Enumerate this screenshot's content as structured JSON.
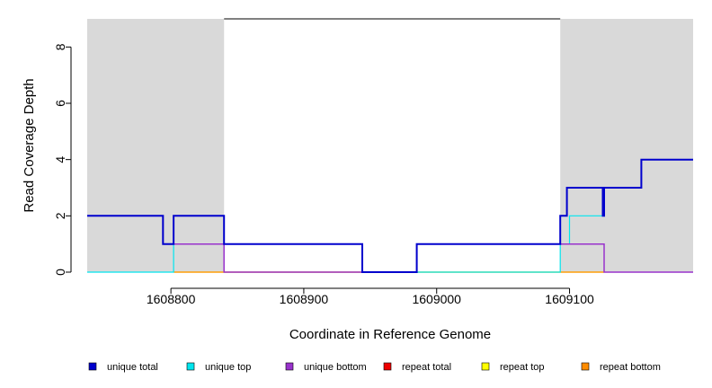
{
  "chart_data": {
    "type": "line",
    "step": true,
    "xlabel": "Coordinate in Reference Genome",
    "ylabel": "Read Coverage Depth",
    "xlim": [
      1608737,
      1609193
    ],
    "ylim": [
      0,
      9
    ],
    "x_ticks": [
      1608800,
      1608900,
      1609000,
      1609100
    ],
    "y_ticks": [
      0,
      2,
      4,
      6,
      8
    ],
    "shaded_regions": [
      {
        "from": 1608737,
        "to": 1608840,
        "color": "#d9d9d9"
      },
      {
        "from": 1609093,
        "to": 1609193,
        "color": "#d9d9d9"
      }
    ],
    "max_line": {
      "from": 1608840,
      "to": 1609093,
      "y": 9
    },
    "series": [
      {
        "name": "unique total",
        "color": "#0000cd",
        "points": [
          [
            1608737,
            2
          ],
          [
            1608794,
            2
          ],
          [
            1608794,
            1
          ],
          [
            1608802,
            1
          ],
          [
            1608802,
            2
          ],
          [
            1608840,
            2
          ],
          [
            1608840,
            1
          ],
          [
            1608944,
            1
          ],
          [
            1608944,
            0
          ],
          [
            1608985,
            0
          ],
          [
            1608985,
            1
          ],
          [
            1609093,
            1
          ],
          [
            1609093,
            2
          ],
          [
            1609098,
            2
          ],
          [
            1609098,
            3
          ],
          [
            1609125,
            3
          ],
          [
            1609125,
            2
          ],
          [
            1609126,
            2
          ],
          [
            1609126,
            3
          ],
          [
            1609154,
            3
          ],
          [
            1609154,
            4
          ],
          [
            1609193,
            4
          ]
        ]
      },
      {
        "name": "unique top",
        "color": "#00e5ee",
        "points": [
          [
            1608737,
            0
          ],
          [
            1608802,
            0
          ],
          [
            1608802,
            1
          ],
          [
            1608840,
            1
          ],
          [
            1608840,
            1
          ],
          [
            1608944,
            1
          ],
          [
            1608944,
            0
          ],
          [
            1608985,
            0
          ],
          [
            1608985,
            0
          ],
          [
            1609093,
            0
          ],
          [
            1609093,
            1
          ],
          [
            1609100,
            1
          ],
          [
            1609100,
            2
          ],
          [
            1609126,
            2
          ],
          [
            1609126,
            3
          ],
          [
            1609154,
            3
          ],
          [
            1609154,
            4
          ],
          [
            1609193,
            4
          ]
        ]
      },
      {
        "name": "unique bottom",
        "color": "#9932cc",
        "points": [
          [
            1608737,
            2
          ],
          [
            1608794,
            2
          ],
          [
            1608794,
            1
          ],
          [
            1608840,
            1
          ],
          [
            1608840,
            0
          ],
          [
            1608985,
            0
          ],
          [
            1608985,
            1
          ],
          [
            1609126,
            1
          ],
          [
            1609126,
            0
          ],
          [
            1609193,
            0
          ]
        ]
      },
      {
        "name": "repeat total",
        "color": "#ee0000",
        "points": []
      },
      {
        "name": "repeat top",
        "color": "#ffff00",
        "points": [
          [
            1608802,
            0
          ],
          [
            1608840,
            0
          ],
          [
            1609093,
            0
          ],
          [
            1609126,
            0
          ]
        ]
      },
      {
        "name": "repeat bottom",
        "color": "#ff8c00",
        "points": [
          [
            1608802,
            0
          ],
          [
            1608840,
            0
          ],
          [
            1609093,
            0
          ],
          [
            1609126,
            0
          ]
        ]
      }
    ]
  }
}
